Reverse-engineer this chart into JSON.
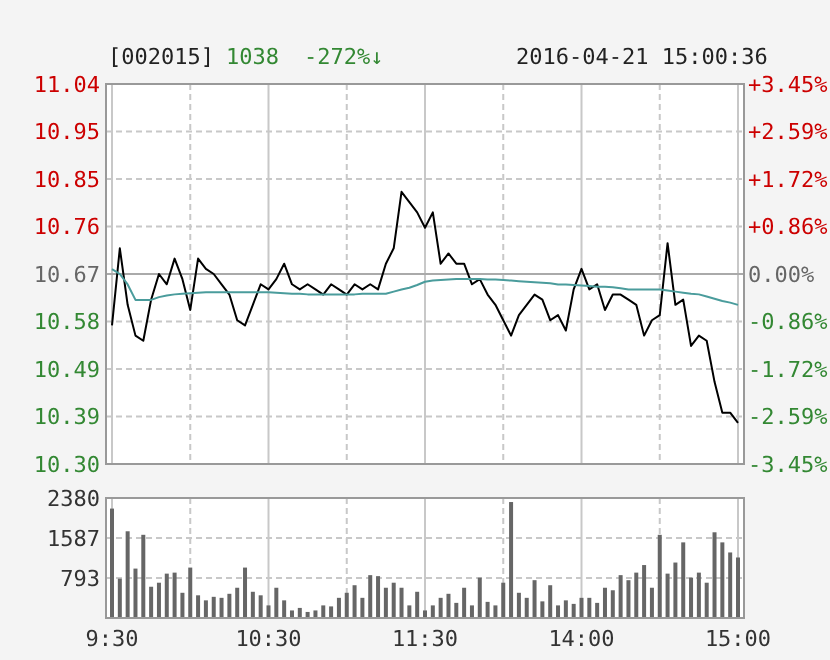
{
  "chart_data": [
    {
      "type": "line",
      "title": "[002015]",
      "annotations": [
        "1038",
        "-272%↓",
        "2016-04-21 15:00:36"
      ],
      "categories": [
        null,
        null,
        null,
        null,
        null,
        null,
        null,
        null,
        null,
        null,
        null,
        null,
        null,
        null,
        null,
        null,
        null,
        null,
        null,
        null,
        null,
        null,
        null,
        null,
        null,
        null,
        null,
        null,
        null,
        null,
        null,
        null,
        null,
        null,
        null,
        null,
        null,
        null,
        null,
        null,
        null,
        null,
        null,
        null,
        null,
        null,
        null,
        null,
        null,
        null,
        null,
        null,
        null,
        null,
        null,
        null,
        null,
        null,
        null,
        null,
        null,
        null,
        null,
        null,
        null,
        null,
        null,
        null,
        null,
        null,
        null,
        null,
        null,
        null,
        null,
        null,
        null,
        null,
        null,
        null,
        null
      ],
      "ylim": [
        10.3,
        11.04
      ],
      "yticks": [
        {
          "value": 10.3,
          "label": "10.30"
        },
        {
          "value": 10.3925,
          "label": "10.39"
        },
        {
          "value": 10.485,
          "label": "10.49"
        },
        {
          "value": 10.5775,
          "label": "10.58"
        },
        {
          "value": 10.67,
          "label": "10.67"
        },
        {
          "value": 10.7625,
          "label": "10.76"
        },
        {
          "value": 10.855,
          "label": "10.85"
        },
        {
          "value": 10.9475,
          "label": "10.95"
        },
        {
          "value": 11.04,
          "label": "11.04"
        }
      ],
      "y2lim": [
        -3.45,
        3.45
      ],
      "y2ticks": [
        {
          "value": -3.45,
          "label": "-3.45%"
        },
        {
          "value": -2.5875,
          "label": "-2.59%"
        },
        {
          "value": -1.725,
          "label": "-1.72%"
        },
        {
          "value": -0.8625,
          "label": "-0.86%"
        },
        {
          "value": 0,
          "label": "0.00%"
        },
        {
          "value": 0.8625,
          "label": "+0.86%"
        },
        {
          "value": 1.725,
          "label": "+1.72%"
        },
        {
          "value": 2.5875,
          "label": "+2.59%"
        },
        {
          "value": 3.45,
          "label": "+3.45%"
        }
      ],
      "grid": true,
      "series": [
        {
          "color": "#000000",
          "values": [
            10.57,
            10.72,
            10.61,
            10.55,
            10.54,
            10.62,
            10.67,
            10.65,
            10.7,
            10.66,
            10.6,
            10.7,
            10.68,
            10.67,
            10.65,
            10.63,
            10.58,
            10.57,
            10.61,
            10.65,
            10.64,
            10.66,
            10.69,
            10.65,
            10.64,
            10.65,
            10.64,
            10.63,
            10.65,
            10.64,
            10.63,
            10.65,
            10.64,
            10.65,
            10.64,
            10.69,
            10.72,
            10.83,
            10.81,
            10.79,
            10.76,
            10.79,
            10.69,
            10.71,
            10.69,
            10.69,
            10.65,
            10.66,
            10.63,
            10.61,
            10.58,
            10.55,
            10.59,
            10.61,
            10.63,
            10.62,
            10.58,
            10.59,
            10.56,
            10.64,
            10.68,
            10.64,
            10.65,
            10.6,
            10.63,
            10.63,
            10.62,
            10.61,
            10.55,
            10.58,
            10.59,
            10.73,
            10.61,
            10.62,
            10.53,
            10.55,
            10.54,
            10.46,
            10.4,
            10.4,
            10.38
          ]
        },
        {
          "color": "#4a9c9c",
          "axis": "y2",
          "values": [
            0.09,
            0.0,
            -0.19,
            -0.47,
            -0.47,
            -0.47,
            -0.42,
            -0.39,
            -0.37,
            -0.36,
            -0.35,
            -0.34,
            -0.33,
            -0.33,
            -0.33,
            -0.33,
            -0.33,
            -0.33,
            -0.33,
            -0.33,
            -0.33,
            -0.34,
            -0.35,
            -0.36,
            -0.36,
            -0.37,
            -0.37,
            -0.37,
            -0.37,
            -0.37,
            -0.37,
            -0.37,
            -0.36,
            -0.36,
            -0.36,
            -0.36,
            -0.32,
            -0.28,
            -0.25,
            -0.2,
            -0.14,
            -0.12,
            -0.11,
            -0.1,
            -0.09,
            -0.09,
            -0.09,
            -0.09,
            -0.1,
            -0.1,
            -0.11,
            -0.12,
            -0.13,
            -0.14,
            -0.15,
            -0.16,
            -0.17,
            -0.19,
            -0.19,
            -0.2,
            -0.21,
            -0.22,
            -0.23,
            -0.23,
            -0.24,
            -0.26,
            -0.28,
            -0.28,
            -0.28,
            -0.28,
            -0.28,
            -0.3,
            -0.32,
            -0.34,
            -0.36,
            -0.37,
            -0.41,
            -0.45,
            -0.49,
            -0.52,
            -0.56
          ]
        }
      ]
    },
    {
      "type": "bar",
      "categories": [
        "9:30",
        null,
        null,
        null,
        null,
        null,
        null,
        null,
        null,
        null,
        null,
        null,
        null,
        null,
        null,
        null,
        null,
        null,
        null,
        null,
        "10:30",
        null,
        null,
        null,
        null,
        null,
        null,
        null,
        null,
        null,
        null,
        null,
        null,
        null,
        null,
        null,
        null,
        null,
        null,
        null,
        "11:30",
        null,
        null,
        null,
        null,
        null,
        null,
        null,
        null,
        null,
        null,
        null,
        null,
        null,
        null,
        null,
        null,
        null,
        null,
        null,
        "14:00",
        null,
        null,
        null,
        null,
        null,
        null,
        null,
        null,
        null,
        null,
        null,
        null,
        null,
        null,
        null,
        null,
        null,
        null,
        null,
        "15:00"
      ],
      "ylim": [
        0,
        2380
      ],
      "yticks": [
        793,
        1587,
        2380
      ],
      "grid": true,
      "color": "#666666",
      "values": [
        2170,
        780,
        1720,
        980,
        1650,
        620,
        700,
        880,
        900,
        500,
        1000,
        450,
        350,
        420,
        400,
        480,
        600,
        1000,
        520,
        450,
        250,
        600,
        350,
        150,
        200,
        120,
        150,
        250,
        230,
        400,
        500,
        650,
        400,
        850,
        830,
        600,
        700,
        600,
        250,
        520,
        150,
        250,
        400,
        480,
        300,
        600,
        250,
        800,
        320,
        250,
        700,
        2300,
        500,
        400,
        750,
        330,
        650,
        250,
        350,
        280,
        400,
        400,
        300,
        600,
        550,
        850,
        750,
        900,
        1050,
        600,
        1650,
        880,
        1100,
        1500,
        800,
        900,
        700,
        1700,
        1500,
        1300,
        1200
      ]
    }
  ]
}
